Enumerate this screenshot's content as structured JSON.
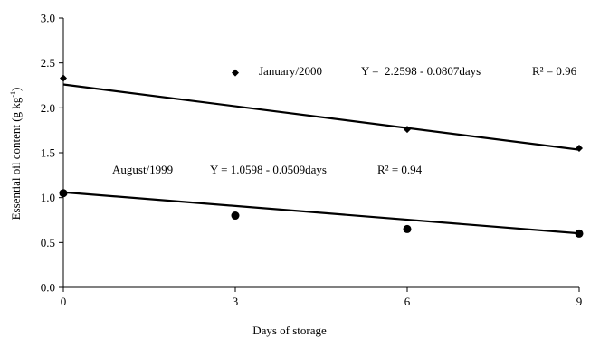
{
  "chart_data": {
    "type": "scatter",
    "xlabel": "Days of storage",
    "ylabel": "Essential oil content (g kg⁻¹)",
    "xlim": [
      0,
      9
    ],
    "ylim": [
      0,
      3
    ],
    "x_ticks": [
      "0",
      "3",
      "6",
      "9"
    ],
    "y_ticks": [
      "0.0",
      "0.5",
      "1.0",
      "1.5",
      "2.0",
      "2.5",
      "3.0"
    ],
    "grid": false,
    "series": [
      {
        "name": "January/2000",
        "marker": "diamond",
        "x": [
          0,
          3,
          6,
          9
        ],
        "y": [
          2.33,
          2.39,
          1.76,
          1.55
        ],
        "trend": {
          "intercept": 2.2598,
          "slope": -0.0807
        },
        "equation": "Y =  2.2598 - 0.0807days",
        "r2": "R² = 0.96"
      },
      {
        "name": "August/1999",
        "marker": "circle",
        "x": [
          0,
          3,
          6,
          9
        ],
        "y": [
          1.05,
          0.8,
          0.65,
          0.6
        ],
        "trend": {
          "intercept": 1.0598,
          "slope": -0.0509
        },
        "equation": "Y = 1.0598 - 0.0509days",
        "r2": "R² = 0.94"
      }
    ]
  }
}
